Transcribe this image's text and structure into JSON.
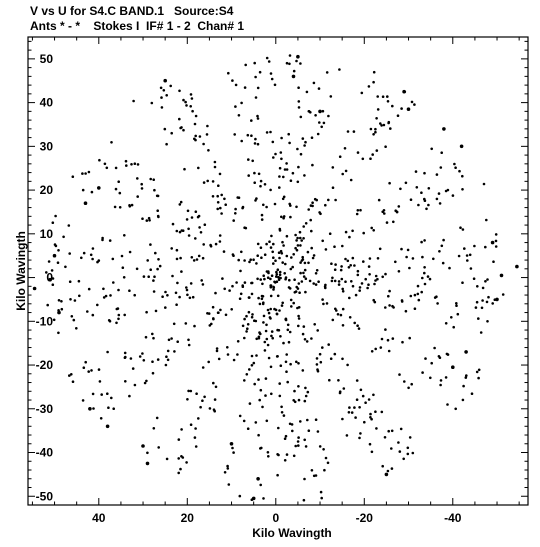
{
  "chart_data": {
    "type": "scatter",
    "title_line1": "V vs U for S4.C BAND.1   Source:S4",
    "title_line2": "Ants * - *    Stokes I  IF# 1 - 2  Chan# 1",
    "xlabel": "Kilo Wavingth",
    "ylabel": "Kilo Wavingth",
    "xlim": [
      56,
      -57
    ],
    "ylim": [
      -52,
      55
    ],
    "x_ticks": [
      40,
      20,
      0,
      -20,
      -40
    ],
    "y_ticks": [
      50,
      40,
      30,
      20,
      10,
      0,
      -10,
      -20,
      -30,
      -40,
      -50
    ],
    "x_tick_labels": [
      "40",
      "20",
      "0",
      "-20",
      "-40"
    ],
    "y_tick_labels": [
      "50",
      "40",
      "30",
      "20",
      "10",
      "0",
      "-10",
      "-20",
      "-30",
      "-40",
      "-50"
    ],
    "grid": false,
    "marker_color": "#000000",
    "sample_points": [
      [
        -54.5,
        2.5
      ],
      [
        54.5,
        -2.5
      ],
      [
        -5,
        50.5
      ],
      [
        5,
        -50.5
      ],
      [
        25,
        45
      ],
      [
        -25,
        -45
      ],
      [
        -29,
        42.5
      ],
      [
        29,
        -42.5
      ],
      [
        -30,
        38.5
      ],
      [
        30,
        -38.5
      ],
      [
        -38,
        34
      ],
      [
        38,
        -34
      ],
      [
        -42,
        30
      ],
      [
        42,
        -30
      ],
      [
        -49,
        8
      ],
      [
        49,
        -8
      ],
      [
        -51,
        0.5
      ],
      [
        51,
        -0.5
      ],
      [
        40,
        20.5
      ],
      [
        -40,
        -20.5
      ],
      [
        43,
        17
      ],
      [
        -43,
        -17
      ],
      [
        50,
        5
      ],
      [
        -50,
        -5
      ],
      [
        -4,
        46
      ],
      [
        4,
        -46
      ],
      [
        -10,
        38
      ],
      [
        10,
        -38
      ]
    ],
    "arm_angles_deg": [
      8,
      32,
      58,
      82,
      100,
      122,
      148,
      172
    ],
    "arm_max_radius": 52,
    "n_scatter_points": 1100
  }
}
